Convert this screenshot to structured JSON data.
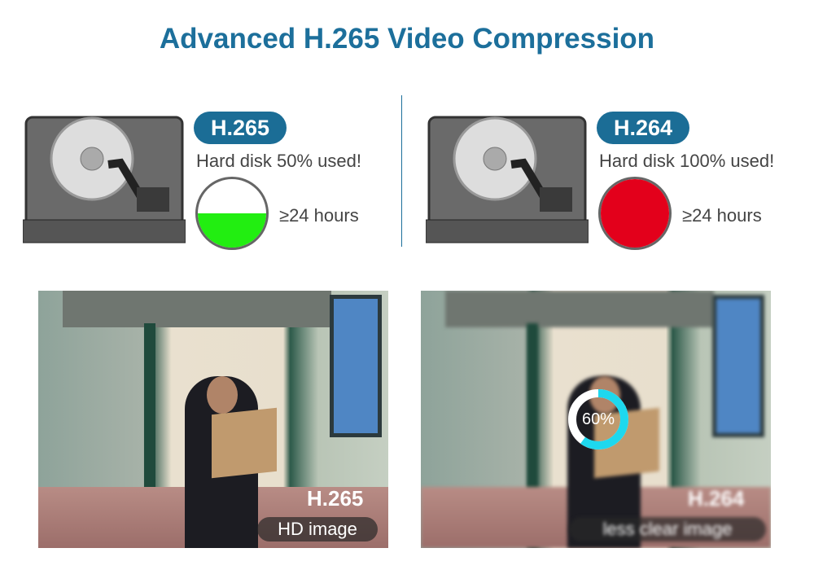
{
  "title": "Advanced H.265 Video Compression",
  "comparison": [
    {
      "codec": "H.265",
      "usage_text": "Hard disk 50% used!",
      "fill_fraction": 0.5,
      "fill_color": "#22ee11",
      "duration": "≥24 hours"
    },
    {
      "codec": "H.264",
      "usage_text": "Hard disk 100% used!",
      "fill_fraction": 1.0,
      "fill_color": "#e3001b",
      "duration": "≥24 hours"
    }
  ],
  "photos": [
    {
      "codec": "H.265",
      "caption": "HD image"
    },
    {
      "codec": "H.264",
      "caption": "less clear image",
      "progress_label": "60%",
      "progress_fraction": 0.6
    }
  ],
  "colors": {
    "brand": "#1b6d96",
    "ring": "#1ed8ee"
  }
}
